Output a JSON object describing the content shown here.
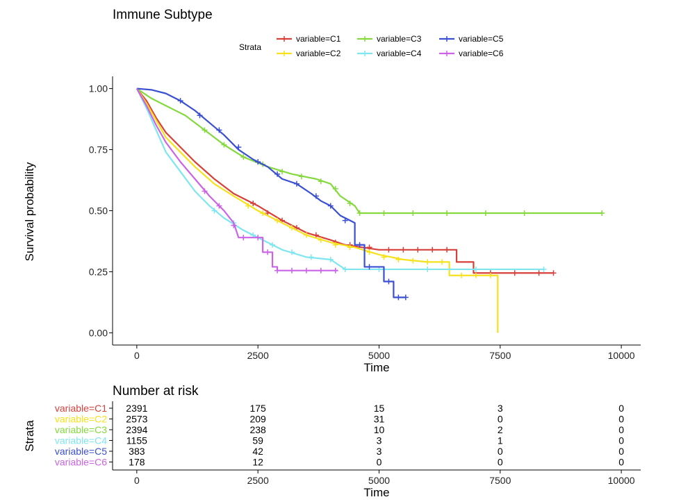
{
  "chart_data": [
    {
      "type": "line",
      "title": "Immune Subtype",
      "xlabel": "Time",
      "ylabel": "Survival probability",
      "xlim": [
        -500,
        10400
      ],
      "ylim": [
        -0.05,
        1.05
      ],
      "xticks": [
        0,
        2500,
        5000,
        7500,
        10000
      ],
      "xtick_labels": [
        "0",
        "2500",
        "5000",
        "7500",
        "10000"
      ],
      "yticks": [
        0,
        0.25,
        0.5,
        0.75,
        1
      ],
      "ytick_labels": [
        "0.00",
        "0.25",
        "0.50",
        "0.75",
        "1.00"
      ],
      "grid": false,
      "legend_title": "Strata",
      "legend_position": "top",
      "series": [
        {
          "name": "variable=C1",
          "color": "#d7403a",
          "points": [
            [
              0,
              1
            ],
            [
              200,
              0.95
            ],
            [
              400,
              0.88
            ],
            [
              600,
              0.82
            ],
            [
              900,
              0.76
            ],
            [
              1200,
              0.7
            ],
            [
              1600,
              0.63
            ],
            [
              2000,
              0.57
            ],
            [
              2500,
              0.52
            ],
            [
              3000,
              0.46
            ],
            [
              3500,
              0.41
            ],
            [
              4000,
              0.38
            ],
            [
              4300,
              0.36
            ],
            [
              5000,
              0.34
            ],
            [
              6600,
              0.34
            ],
            [
              6600,
              0.29
            ],
            [
              6950,
              0.29
            ],
            [
              6950,
              0.245
            ],
            [
              8600,
              0.245
            ]
          ],
          "censors": [
            [
              2400,
              0.53
            ],
            [
              2700,
              0.49
            ],
            [
              3000,
              0.46
            ],
            [
              3300,
              0.43
            ],
            [
              3700,
              0.4
            ],
            [
              4100,
              0.37
            ],
            [
              4400,
              0.36
            ],
            [
              4800,
              0.35
            ],
            [
              5200,
              0.34
            ],
            [
              5500,
              0.34
            ],
            [
              5800,
              0.34
            ],
            [
              6100,
              0.34
            ],
            [
              6400,
              0.34
            ],
            [
              7300,
              0.245
            ],
            [
              7800,
              0.245
            ],
            [
              8300,
              0.245
            ],
            [
              8600,
              0.245
            ]
          ]
        },
        {
          "name": "variable=C2",
          "color": "#f5e11c",
          "points": [
            [
              0,
              1
            ],
            [
              200,
              0.94
            ],
            [
              400,
              0.87
            ],
            [
              600,
              0.8
            ],
            [
              900,
              0.74
            ],
            [
              1200,
              0.68
            ],
            [
              1600,
              0.61
            ],
            [
              2000,
              0.56
            ],
            [
              2500,
              0.5
            ],
            [
              3000,
              0.45
            ],
            [
              3500,
              0.4
            ],
            [
              4000,
              0.37
            ],
            [
              4500,
              0.35
            ],
            [
              5000,
              0.32
            ],
            [
              5500,
              0.3
            ],
            [
              6000,
              0.29
            ],
            [
              6450,
              0.29
            ],
            [
              6450,
              0.235
            ],
            [
              7450,
              0.235
            ],
            [
              7450,
              0
            ]
          ],
          "censors": [
            [
              2300,
              0.52
            ],
            [
              2600,
              0.49
            ],
            [
              2900,
              0.46
            ],
            [
              3200,
              0.43
            ],
            [
              3500,
              0.4
            ],
            [
              3800,
              0.38
            ],
            [
              4100,
              0.36
            ],
            [
              4400,
              0.35
            ],
            [
              4800,
              0.33
            ],
            [
              5100,
              0.31
            ],
            [
              5400,
              0.3
            ],
            [
              5700,
              0.295
            ],
            [
              6000,
              0.29
            ],
            [
              6300,
              0.29
            ],
            [
              6700,
              0.235
            ],
            [
              7000,
              0.235
            ],
            [
              7300,
              0.235
            ]
          ]
        },
        {
          "name": "variable=C3",
          "color": "#84d93c",
          "points": [
            [
              0,
              1
            ],
            [
              300,
              0.96
            ],
            [
              600,
              0.93
            ],
            [
              1000,
              0.89
            ],
            [
              1400,
              0.83
            ],
            [
              1800,
              0.77
            ],
            [
              2200,
              0.72
            ],
            [
              2700,
              0.68
            ],
            [
              3200,
              0.65
            ],
            [
              3700,
              0.63
            ],
            [
              4000,
              0.61
            ],
            [
              4200,
              0.56
            ],
            [
              4500,
              0.52
            ],
            [
              4600,
              0.49
            ],
            [
              9600,
              0.49
            ]
          ],
          "censors": [
            [
              1400,
              0.83
            ],
            [
              1800,
              0.77
            ],
            [
              2200,
              0.72
            ],
            [
              2600,
              0.69
            ],
            [
              3000,
              0.66
            ],
            [
              3400,
              0.64
            ],
            [
              3800,
              0.62
            ],
            [
              4100,
              0.59
            ],
            [
              4400,
              0.53
            ],
            [
              4600,
              0.49
            ],
            [
              5100,
              0.49
            ],
            [
              5700,
              0.49
            ],
            [
              6400,
              0.49
            ],
            [
              7200,
              0.49
            ],
            [
              8000,
              0.49
            ],
            [
              9600,
              0.49
            ]
          ]
        },
        {
          "name": "variable=C4",
          "color": "#7fe6f0",
          "points": [
            [
              0,
              1
            ],
            [
              200,
              0.92
            ],
            [
              400,
              0.83
            ],
            [
              600,
              0.74
            ],
            [
              900,
              0.66
            ],
            [
              1200,
              0.58
            ],
            [
              1500,
              0.52
            ],
            [
              1800,
              0.47
            ],
            [
              2200,
              0.42
            ],
            [
              2600,
              0.38
            ],
            [
              3000,
              0.34
            ],
            [
              3500,
              0.31
            ],
            [
              4000,
              0.3
            ],
            [
              4300,
              0.26
            ],
            [
              8400,
              0.26
            ]
          ],
          "censors": [
            [
              1600,
              0.5
            ],
            [
              2000,
              0.45
            ],
            [
              2400,
              0.4
            ],
            [
              2800,
              0.36
            ],
            [
              3200,
              0.33
            ],
            [
              3600,
              0.31
            ],
            [
              4000,
              0.3
            ],
            [
              4300,
              0.26
            ],
            [
              5000,
              0.26
            ],
            [
              6000,
              0.26
            ],
            [
              7000,
              0.26
            ],
            [
              8400,
              0.26
            ]
          ]
        },
        {
          "name": "variable=C5",
          "color": "#3a4fd1",
          "points": [
            [
              0,
              1
            ],
            [
              300,
              0.995
            ],
            [
              600,
              0.98
            ],
            [
              900,
              0.95
            ],
            [
              1200,
              0.91
            ],
            [
              1500,
              0.86
            ],
            [
              1800,
              0.81
            ],
            [
              2100,
              0.75
            ],
            [
              2400,
              0.71
            ],
            [
              2700,
              0.68
            ],
            [
              3000,
              0.63
            ],
            [
              3300,
              0.61
            ],
            [
              3600,
              0.57
            ],
            [
              3800,
              0.54
            ],
            [
              4000,
              0.52
            ],
            [
              4200,
              0.48
            ],
            [
              4500,
              0.45
            ],
            [
              4500,
              0.36
            ],
            [
              4700,
              0.36
            ],
            [
              4700,
              0.27
            ],
            [
              5100,
              0.27
            ],
            [
              5100,
              0.21
            ],
            [
              5300,
              0.21
            ],
            [
              5300,
              0.145
            ],
            [
              5550,
              0.145
            ]
          ],
          "censors": [
            [
              900,
              0.95
            ],
            [
              1300,
              0.89
            ],
            [
              1700,
              0.83
            ],
            [
              2100,
              0.76
            ],
            [
              2500,
              0.7
            ],
            [
              2900,
              0.65
            ],
            [
              3300,
              0.61
            ],
            [
              3700,
              0.56
            ],
            [
              4000,
              0.52
            ],
            [
              4300,
              0.46
            ],
            [
              4600,
              0.36
            ],
            [
              4800,
              0.27
            ],
            [
              5200,
              0.21
            ],
            [
              5400,
              0.145
            ],
            [
              5550,
              0.145
            ]
          ]
        },
        {
          "name": "variable=C6",
          "color": "#cb63e6",
          "points": [
            [
              0,
              1
            ],
            [
              200,
              0.93
            ],
            [
              400,
              0.85
            ],
            [
              600,
              0.78
            ],
            [
              900,
              0.7
            ],
            [
              1200,
              0.63
            ],
            [
              1500,
              0.56
            ],
            [
              1800,
              0.5
            ],
            [
              2000,
              0.45
            ],
            [
              2100,
              0.39
            ],
            [
              2600,
              0.39
            ],
            [
              2600,
              0.33
            ],
            [
              2800,
              0.33
            ],
            [
              2800,
              0.27
            ],
            [
              2900,
              0.27
            ],
            [
              2900,
              0.255
            ],
            [
              4150,
              0.255
            ]
          ],
          "censors": [
            [
              1400,
              0.58
            ],
            [
              1700,
              0.52
            ],
            [
              2000,
              0.44
            ],
            [
              2200,
              0.39
            ],
            [
              2500,
              0.39
            ],
            [
              2700,
              0.33
            ],
            [
              2900,
              0.255
            ],
            [
              3200,
              0.255
            ],
            [
              3500,
              0.255
            ],
            [
              3800,
              0.255
            ],
            [
              4100,
              0.255
            ]
          ]
        }
      ]
    },
    {
      "type": "table",
      "title": "Number at risk",
      "xlabel": "Time",
      "ylabel": "Strata",
      "xlim": [
        -500,
        10400
      ],
      "xticks": [
        0,
        2500,
        5000,
        7500,
        10000
      ],
      "xtick_labels": [
        "0",
        "2500",
        "5000",
        "7500",
        "10000"
      ],
      "rows": [
        {
          "label": "variable=C1",
          "color": "#d7403a",
          "values": [
            "2391",
            "175",
            "15",
            "3",
            "0"
          ]
        },
        {
          "label": "variable=C2",
          "color": "#f5e11c",
          "values": [
            "2573",
            "209",
            "31",
            "0",
            "0"
          ]
        },
        {
          "label": "variable=C3",
          "color": "#84d93c",
          "values": [
            "2394",
            "238",
            "10",
            "2",
            "0"
          ]
        },
        {
          "label": "variable=C4",
          "color": "#7fe6f0",
          "values": [
            "1155",
            "59",
            "3",
            "1",
            "0"
          ]
        },
        {
          "label": "variable=C5",
          "color": "#3a4fd1",
          "values": [
            "383",
            "42",
            "3",
            "0",
            "0"
          ]
        },
        {
          "label": "variable=C6",
          "color": "#cb63e6",
          "values": [
            "178",
            "12",
            "0",
            "0",
            "0"
          ]
        }
      ]
    }
  ]
}
